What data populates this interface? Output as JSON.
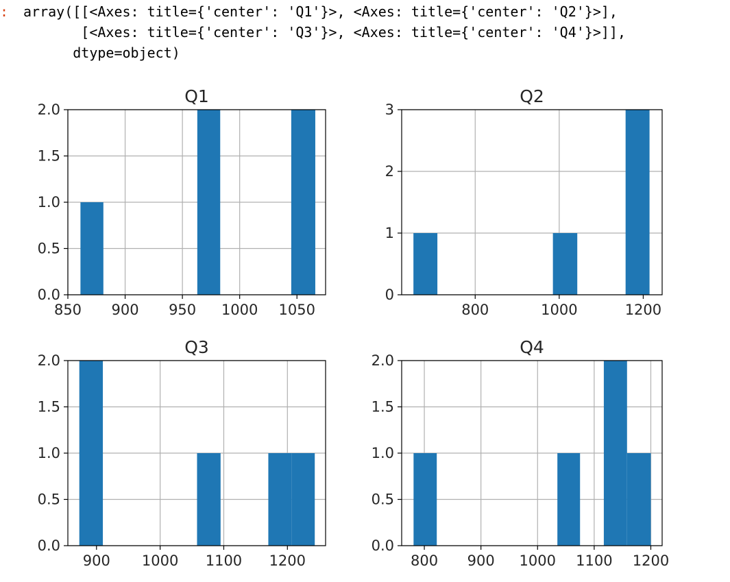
{
  "output": {
    "prompt_marker": ":",
    "lines": [
      "array([[<Axes: title={'center': 'Q1'}>, <Axes: title={'center': 'Q2'}>],",
      "       [<Axes: title={'center': 'Q3'}>, <Axes: title={'center': 'Q4'}>]],",
      "      dtype=object)"
    ]
  },
  "colors": {
    "bar": "#1f77b4",
    "grid": "#b0b0b0",
    "axis": "#000000"
  },
  "chart_data": [
    {
      "type": "bar",
      "subtype": "histogram",
      "title": "Q1",
      "grid": true,
      "xlim": [
        850,
        1075
      ],
      "ylim": [
        0,
        2.0
      ],
      "xticks": [
        850,
        900,
        950,
        1000,
        1050
      ],
      "xtick_labels": [
        "850",
        "900",
        "950",
        "1000",
        "1050"
      ],
      "yticks": [
        0,
        0.5,
        1.0,
        1.5,
        2.0
      ],
      "ytick_labels": [
        "0.0",
        "0.5",
        "1.0",
        "1.5",
        "2.0"
      ],
      "bins": [
        {
          "x0": 861,
          "x1": 881,
          "count": 1
        },
        {
          "x0": 963,
          "x1": 983,
          "count": 2
        },
        {
          "x0": 1045,
          "x1": 1066,
          "count": 2
        }
      ]
    },
    {
      "type": "bar",
      "subtype": "histogram",
      "title": "Q2",
      "grid": true,
      "xlim": [
        625,
        1245
      ],
      "ylim": [
        0,
        3
      ],
      "xticks": [
        800,
        1000,
        1200
      ],
      "xtick_labels": [
        "800",
        "1000",
        "1200"
      ],
      "yticks": [
        0,
        1,
        2,
        3
      ],
      "ytick_labels": [
        "0",
        "1",
        "2",
        "3"
      ],
      "bins": [
        {
          "x0": 653,
          "x1": 710,
          "count": 1
        },
        {
          "x0": 985,
          "x1": 1043,
          "count": 1
        },
        {
          "x0": 1158,
          "x1": 1215,
          "count": 3
        }
      ]
    },
    {
      "type": "bar",
      "subtype": "histogram",
      "title": "Q3",
      "grid": true,
      "xlim": [
        855,
        1260
      ],
      "ylim": [
        0,
        2.0
      ],
      "xticks": [
        900,
        1000,
        1100,
        1200
      ],
      "xtick_labels": [
        "900",
        "1000",
        "1100",
        "1200"
      ],
      "yticks": [
        0,
        0.5,
        1.0,
        1.5,
        2.0
      ],
      "ytick_labels": [
        "0.0",
        "0.5",
        "1.0",
        "1.5",
        "2.0"
      ],
      "bins": [
        {
          "x0": 873,
          "x1": 910,
          "count": 2
        },
        {
          "x0": 1058,
          "x1": 1095,
          "count": 1
        },
        {
          "x0": 1170,
          "x1": 1207,
          "count": 1
        },
        {
          "x0": 1207,
          "x1": 1243,
          "count": 1
        }
      ]
    },
    {
      "type": "bar",
      "subtype": "histogram",
      "title": "Q4",
      "grid": true,
      "xlim": [
        760,
        1220
      ],
      "ylim": [
        0,
        2.0
      ],
      "xticks": [
        800,
        900,
        1000,
        1100,
        1200
      ],
      "xtick_labels": [
        "800",
        "900",
        "1000",
        "1100",
        "1200"
      ],
      "yticks": [
        0,
        0.5,
        1.0,
        1.5,
        2.0
      ],
      "ytick_labels": [
        "0.0",
        "0.5",
        "1.0",
        "1.5",
        "2.0"
      ],
      "bins": [
        {
          "x0": 781,
          "x1": 822,
          "count": 1
        },
        {
          "x0": 1035,
          "x1": 1075,
          "count": 1
        },
        {
          "x0": 1117,
          "x1": 1158,
          "count": 2
        },
        {
          "x0": 1158,
          "x1": 1200,
          "count": 1
        }
      ]
    }
  ]
}
